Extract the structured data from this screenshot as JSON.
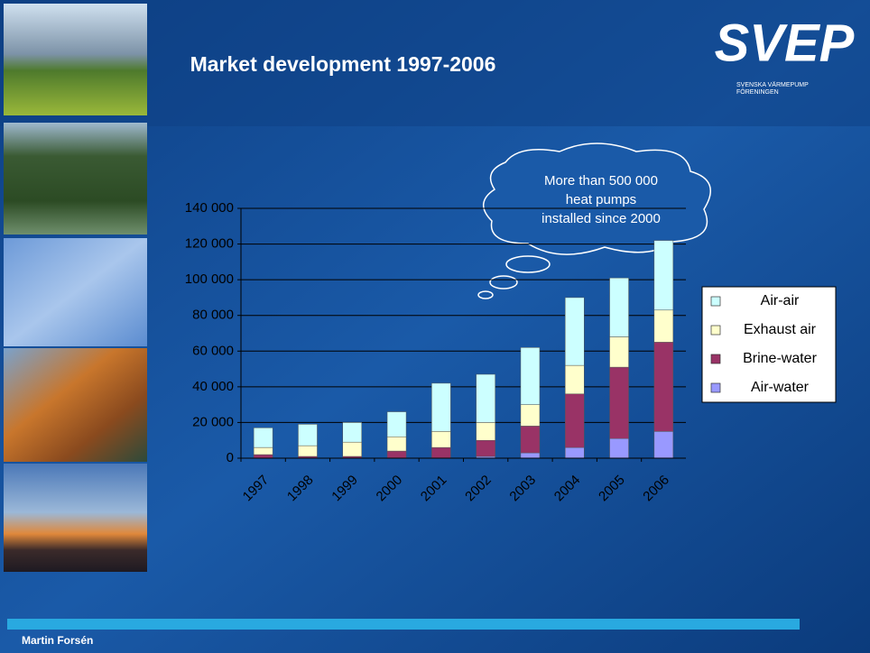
{
  "chart_data": {
    "type": "bar",
    "stacked": true,
    "title": "Market development 1997-2006",
    "categories": [
      "1997",
      "1998",
      "1999",
      "2000",
      "2001",
      "2002",
      "2003",
      "2004",
      "2005",
      "2006"
    ],
    "series": [
      {
        "name": "Air-water",
        "color": "#9999ff",
        "values": [
          0,
          0,
          0,
          0,
          0,
          1000,
          3000,
          6000,
          11000,
          15000
        ]
      },
      {
        "name": "Brine-water",
        "color": "#993366",
        "values": [
          2000,
          1000,
          1000,
          4000,
          6000,
          9000,
          15000,
          30000,
          40000,
          50000
        ]
      },
      {
        "name": "Exhaust air",
        "color": "#ffffcc",
        "values": [
          4000,
          6000,
          8000,
          8000,
          9000,
          10000,
          12000,
          16000,
          17000,
          18000
        ]
      },
      {
        "name": "Air-air",
        "color": "#ccffff",
        "values": [
          11000,
          12000,
          11000,
          14000,
          27000,
          27000,
          32000,
          38000,
          33000,
          39000
        ]
      }
    ],
    "ylim": [
      0,
      140000
    ],
    "yticks": [
      {
        "value": 0,
        "label": "0"
      },
      {
        "value": 20000,
        "label": "20 000"
      },
      {
        "value": 40000,
        "label": "40 000"
      },
      {
        "value": 60000,
        "label": "60 000"
      },
      {
        "value": 80000,
        "label": "80 000"
      },
      {
        "value": 100000,
        "label": "100 000"
      },
      {
        "value": 120000,
        "label": "120 000"
      },
      {
        "value": 140000,
        "label": "140 000"
      }
    ],
    "grid": true,
    "legend_position": "right",
    "annotation": [
      "More than 500 000",
      "heat pumps",
      "installed since 2000"
    ]
  },
  "logo": {
    "name": "SVEP",
    "lines": [
      "SVENSKA VÄRMEPUMP",
      "FÖRENINGEN"
    ]
  },
  "footer": "Martin Forsén"
}
